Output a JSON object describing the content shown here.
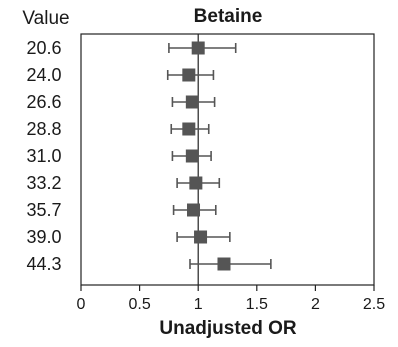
{
  "chart_data": {
    "type": "scatter",
    "title": "Betaine",
    "xlabel": "Unadjusted OR",
    "ylabel": "",
    "row_header": "Value",
    "xlim": [
      0,
      2.5
    ],
    "xticks": [
      0,
      0.5,
      1,
      1.5,
      2,
      2.5
    ],
    "xtick_labels": [
      "0",
      "0.5",
      "1",
      "1.5",
      "2",
      "2.5"
    ],
    "reference_line": 1,
    "marker": "square",
    "marker_color": "#555555",
    "rows": [
      {
        "label": "20.6",
        "or": 1.0,
        "ci_low": 0.75,
        "ci_high": 1.32
      },
      {
        "label": "24.0",
        "or": 0.92,
        "ci_low": 0.74,
        "ci_high": 1.13
      },
      {
        "label": "26.6",
        "or": 0.95,
        "ci_low": 0.78,
        "ci_high": 1.14
      },
      {
        "label": "28.8",
        "or": 0.92,
        "ci_low": 0.77,
        "ci_high": 1.09
      },
      {
        "label": "31.0",
        "or": 0.95,
        "ci_low": 0.78,
        "ci_high": 1.11
      },
      {
        "label": "33.2",
        "or": 0.98,
        "ci_low": 0.82,
        "ci_high": 1.18
      },
      {
        "label": "35.7",
        "or": 0.96,
        "ci_low": 0.79,
        "ci_high": 1.15
      },
      {
        "label": "39.0",
        "or": 1.02,
        "ci_low": 0.82,
        "ci_high": 1.27
      },
      {
        "label": "44.3",
        "or": 1.22,
        "ci_low": 0.93,
        "ci_high": 1.62
      }
    ]
  }
}
